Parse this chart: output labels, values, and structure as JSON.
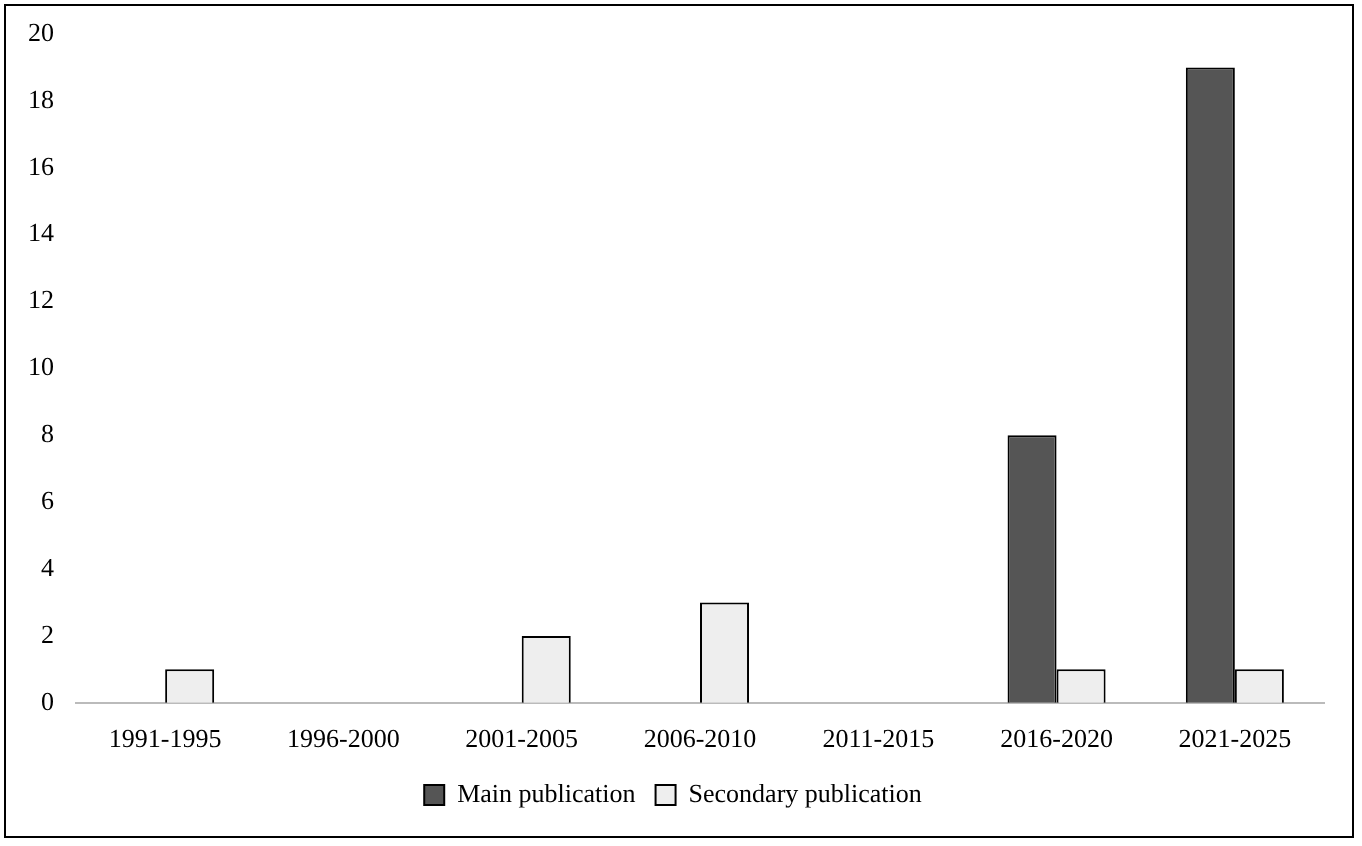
{
  "chart_data": {
    "type": "bar",
    "categories": [
      "1991-1995",
      "1996-2000",
      "2001-2005",
      "2006-2010",
      "2011-2015",
      "2016-2020",
      "2021-2025"
    ],
    "series": [
      {
        "name": "Main publication",
        "color": "#555555",
        "values": [
          0,
          0,
          0,
          0,
          0,
          8,
          19
        ]
      },
      {
        "name": "Secondary publication",
        "color": "#eeeeee",
        "values": [
          1,
          0,
          2,
          3,
          0,
          1,
          1
        ]
      }
    ],
    "ylim": [
      0,
      20
    ],
    "yticks": [
      0,
      2,
      4,
      6,
      8,
      10,
      12,
      14,
      16,
      18,
      20
    ],
    "grid": false,
    "legend": "bottom"
  }
}
